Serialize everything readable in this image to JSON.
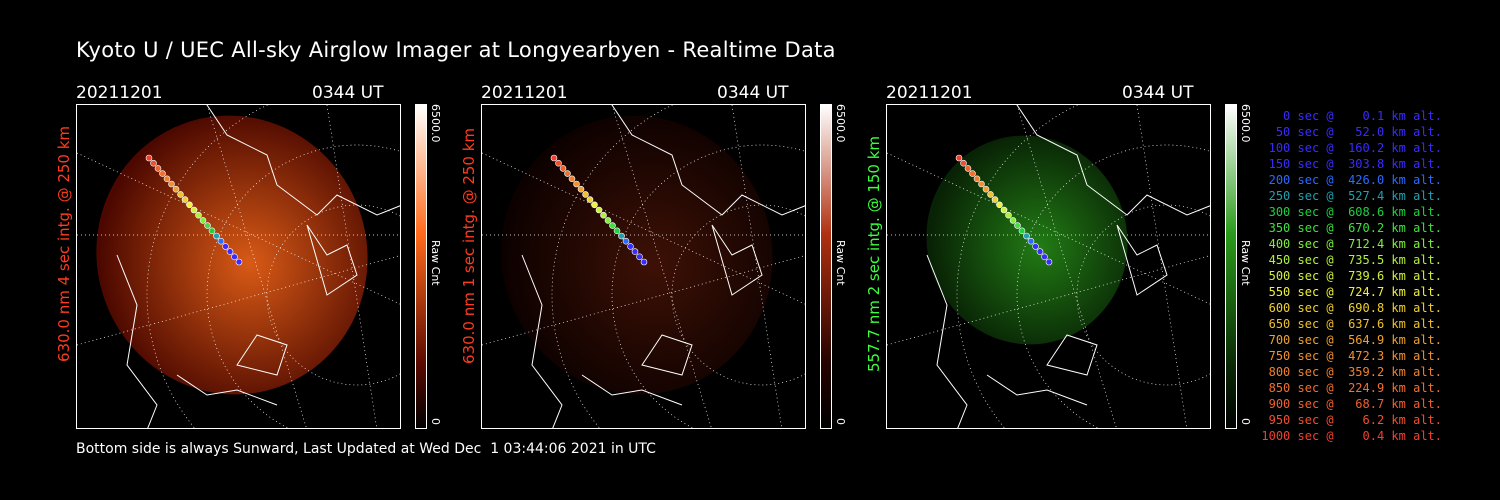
{
  "title": "Kyoto U / UEC All-sky Airglow Imager at Longyearbyen - Realtime Data",
  "footer": "Bottom side is always Sunward, Last Updated at Wed Dec  1 03:44:06 2021 in UTC",
  "panels": [
    {
      "date": "20211201",
      "time": "0344 UT",
      "label": "630.0 nm 4 sec intg. @ 250 km",
      "label_color": "#ff3b1f",
      "cbar_max": "6500.0",
      "cbar_min": "0",
      "cbar_unit": "Raw Cnt",
      "color_high": "#ff6a1a",
      "color_low": "#5a0a00",
      "intensity": 0.85
    },
    {
      "date": "20211201",
      "time": "0344 UT",
      "label": "630.0 nm 1 sec intg. @ 250 km",
      "label_color": "#ff3b1f",
      "cbar_max": "6500.0",
      "cbar_min": "0",
      "cbar_unit": "Raw Cnt",
      "color_high": "#b03010",
      "color_low": "#250300",
      "intensity": 0.35
    },
    {
      "date": "20211201",
      "time": "0344 UT",
      "label": "557.7 nm 2 sec intg. @ 150 km",
      "label_color": "#3cff3c",
      "cbar_max": "6500.0",
      "cbar_min": "0",
      "cbar_unit": "Raw Cnt",
      "color_high": "#2a9a1a",
      "color_low": "#0a2a06",
      "intensity": 0.8
    }
  ],
  "legend": [
    {
      "text": "   0 sec @    0.1 km alt.",
      "color": "#3a2bff"
    },
    {
      "text": "  50 sec @   52.0 km alt.",
      "color": "#3a2bff"
    },
    {
      "text": " 100 sec @  160.2 km alt.",
      "color": "#3a2bff"
    },
    {
      "text": " 150 sec @  303.8 km alt.",
      "color": "#3a2bff"
    },
    {
      "text": " 200 sec @  426.0 km alt.",
      "color": "#2a6aff"
    },
    {
      "text": " 250 sec @  527.4 km alt.",
      "color": "#20a0b0"
    },
    {
      "text": " 300 sec @  608.6 km alt.",
      "color": "#20d040"
    },
    {
      "text": " 350 sec @  670.2 km alt.",
      "color": "#40e040"
    },
    {
      "text": " 400 sec @  712.4 km alt.",
      "color": "#80f040"
    },
    {
      "text": " 450 sec @  735.5 km alt.",
      "color": "#b0f040"
    },
    {
      "text": " 500 sec @  739.6 km alt.",
      "color": "#d0f040"
    },
    {
      "text": " 550 sec @  724.7 km alt.",
      "color": "#f0f040"
    },
    {
      "text": " 600 sec @  690.8 km alt.",
      "color": "#f0d030"
    },
    {
      "text": " 650 sec @  637.6 km alt.",
      "color": "#f0c030"
    },
    {
      "text": " 700 sec @  564.9 km alt.",
      "color": "#f0a030"
    },
    {
      "text": " 750 sec @  472.3 km alt.",
      "color": "#f09030"
    },
    {
      "text": " 800 sec @  359.2 km alt.",
      "color": "#f08030"
    },
    {
      "text": " 850 sec @  224.9 km alt.",
      "color": "#f07030"
    },
    {
      "text": " 900 sec @   68.7 km alt.",
      "color": "#f06030"
    },
    {
      "text": " 950 sec @    6.2 km alt.",
      "color": "#f05030"
    },
    {
      "text": "1000 sec @    0.4 km alt.",
      "color": "#f04030"
    }
  ]
}
